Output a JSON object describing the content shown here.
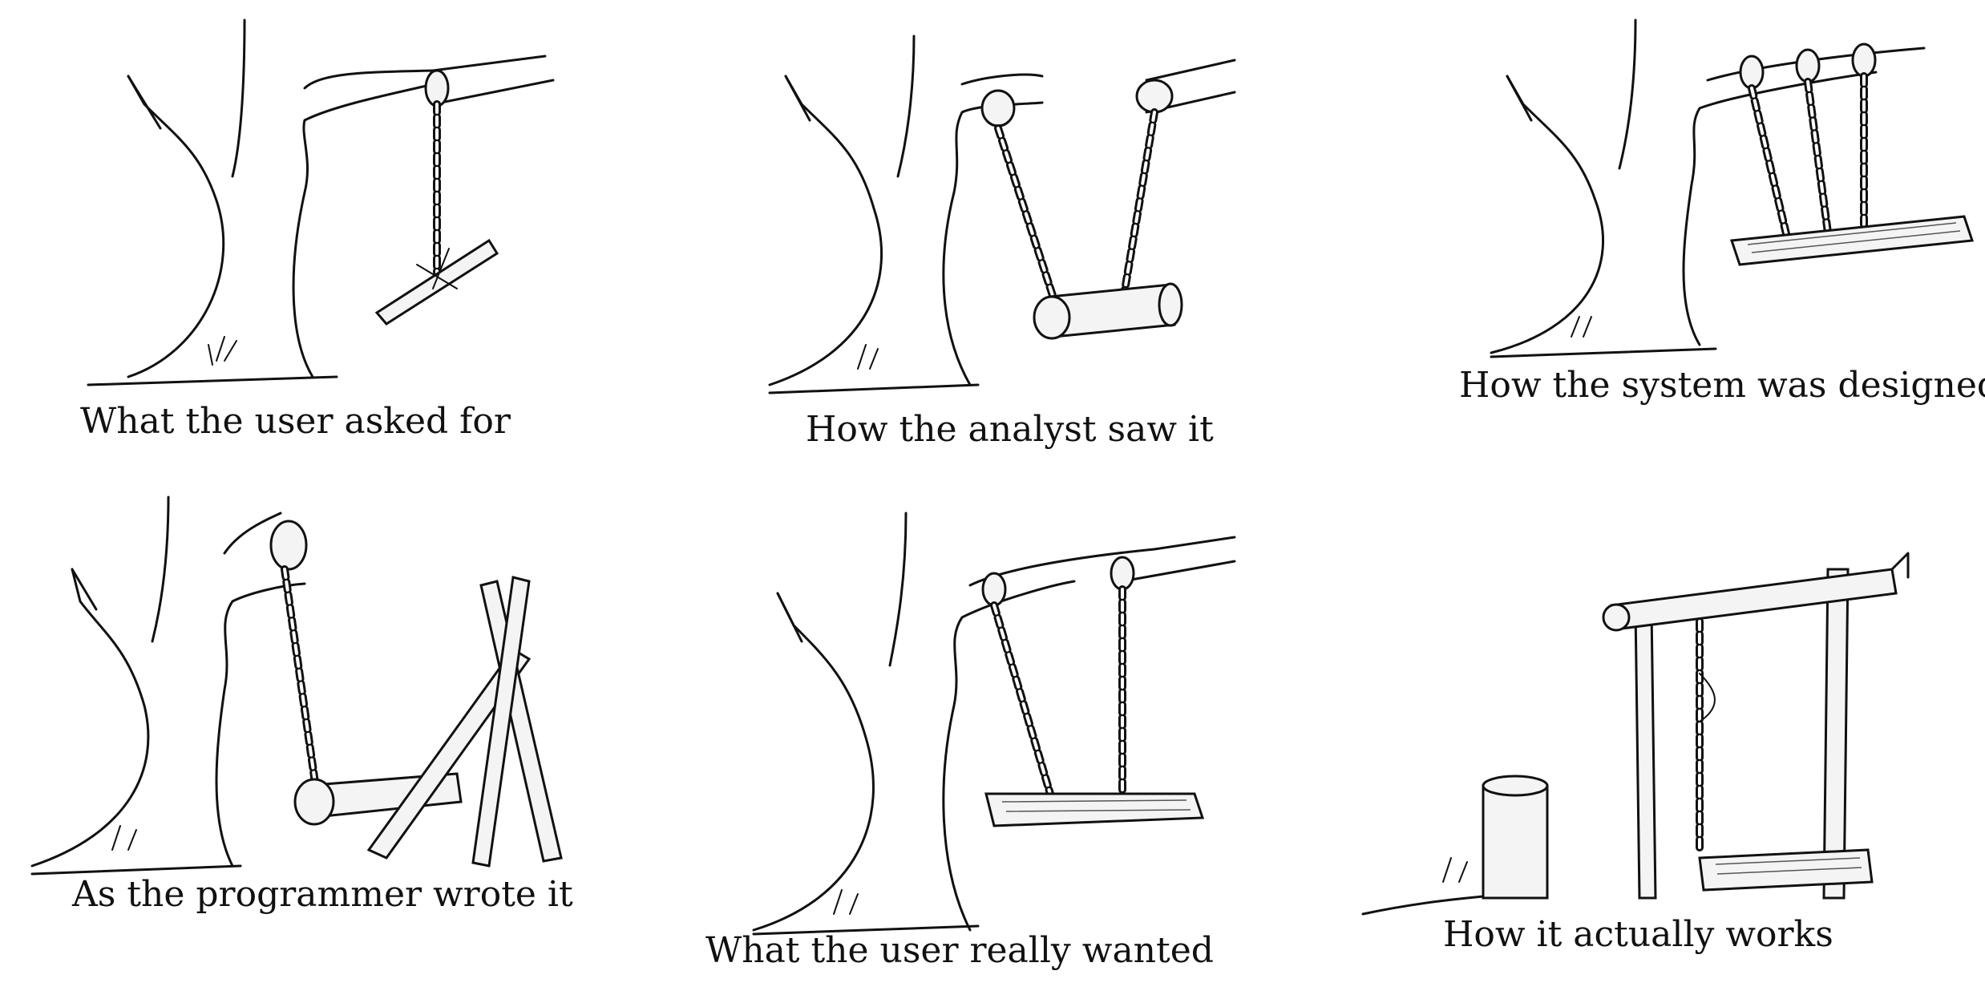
{
  "panels": [
    {
      "caption": "What the user asked for"
    },
    {
      "caption": "How the analyst saw it"
    },
    {
      "caption": "How the system was designed"
    },
    {
      "caption": "As the programmer wrote it"
    },
    {
      "caption": "What the user really wanted"
    },
    {
      "caption": "How it actually works"
    }
  ]
}
